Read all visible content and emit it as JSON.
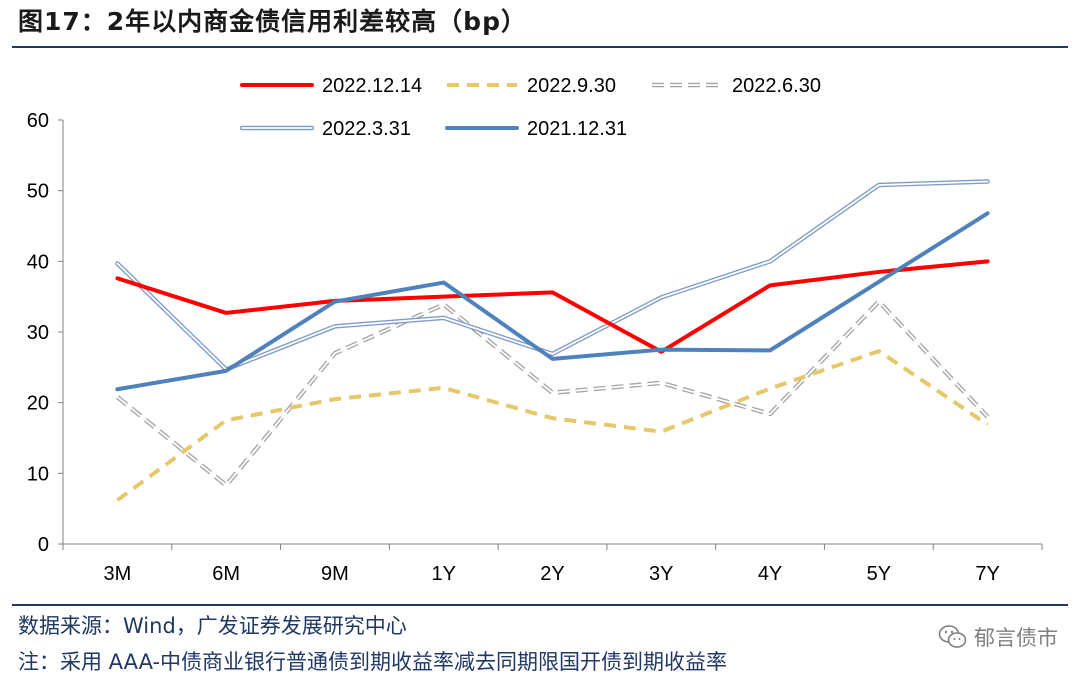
{
  "title": "图17：2年以内商金债信用利差较高（bp）",
  "source": "数据来源：Wind，广发证券发展研究中心",
  "note": "注：采用 AAA-中债商业银行普通债到期收益率减去同期限国开债到期收益率",
  "watermark": {
    "text": "郁言债市",
    "icon": "wechat-icon"
  },
  "colors": {
    "rule": "#1f3864",
    "text_blue": "#1f3864"
  },
  "chart_data": {
    "type": "line",
    "title": "",
    "xlabel": "",
    "ylabel": "",
    "categories": [
      "3M",
      "6M",
      "9M",
      "1Y",
      "2Y",
      "3Y",
      "4Y",
      "5Y",
      "7Y"
    ],
    "ylim": [
      0,
      60
    ],
    "yticks": [
      0,
      10,
      20,
      30,
      40,
      50,
      60
    ],
    "legend_position": "top",
    "series": [
      {
        "name": "2022.12.14",
        "style": "solid",
        "color": "#ff0000",
        "values": [
          37.6,
          32.7,
          34.4,
          35.0,
          35.6,
          27.2,
          36.6,
          38.5,
          40.0
        ]
      },
      {
        "name": "2022.9.30",
        "style": "dashed",
        "color": "#e6c76a",
        "values": [
          6.2,
          17.5,
          20.5,
          22.1,
          17.8,
          15.9,
          22.0,
          27.3,
          16.9
        ]
      },
      {
        "name": "2022.6.30",
        "style": "double-dashed",
        "color": "#a6a6a6",
        "values": [
          20.8,
          8.3,
          27.0,
          33.9,
          21.4,
          22.8,
          18.4,
          34.3,
          18.0
        ]
      },
      {
        "name": "2022.3.31",
        "style": "double",
        "color": "#7f9cc8",
        "values": [
          39.7,
          24.7,
          30.8,
          32.0,
          26.9,
          34.9,
          40.0,
          50.8,
          51.3
        ]
      },
      {
        "name": "2021.12.31",
        "style": "solid",
        "color": "#4f81bd",
        "values": [
          21.9,
          24.5,
          34.3,
          37.0,
          26.2,
          27.5,
          27.4,
          37.1,
          46.8
        ]
      }
    ]
  }
}
